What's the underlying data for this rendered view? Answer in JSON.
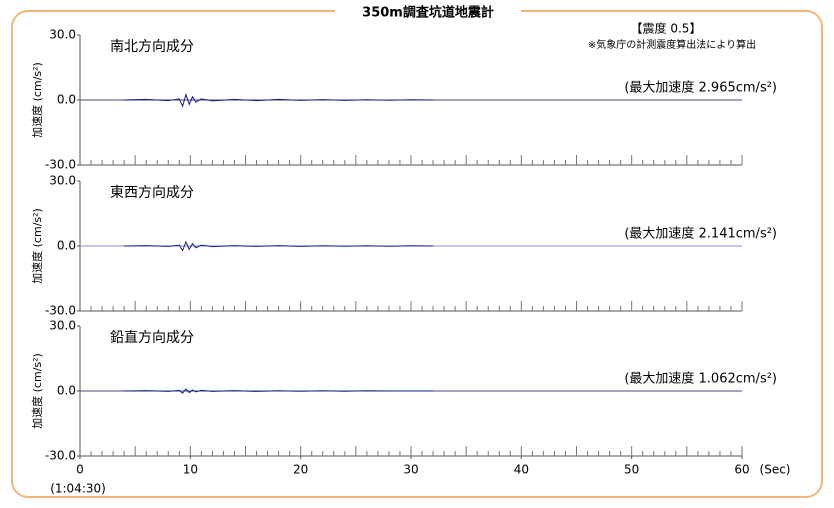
{
  "title": "350m調査坑道地震計",
  "intensity": "【震度 0.5】",
  "note": "※気象庁の計測震度算出法により算出",
  "chart_data": [
    {
      "type": "line",
      "label": "南北方向成分",
      "max_label": "(最大加速度 2.965cm/s²)",
      "ylabel": "加速度 (cm/s²)",
      "x": [
        4,
        6,
        8,
        9,
        9.3,
        9.6,
        9.9,
        10.2,
        10.5,
        11,
        12,
        14,
        16,
        18,
        20,
        22,
        24,
        26,
        28,
        30,
        32
      ],
      "values": [
        0,
        0.3,
        -0.3,
        0.5,
        -2.9,
        2.5,
        -2,
        1.5,
        -1,
        0.5,
        -0.4,
        0.3,
        -0.3,
        0.3,
        -0.2,
        0.2,
        -0.2,
        0.1,
        -0.1,
        0.1,
        0
      ],
      "color": "#1a1a8c",
      "xlim": [
        0,
        60
      ],
      "ylim": [
        -30,
        30
      ],
      "yticks": [
        {
          "value": 30,
          "label": "30.0"
        },
        {
          "value": 0,
          "label": "0.0"
        },
        {
          "value": -30,
          "label": "-30.0"
        }
      ]
    },
    {
      "type": "line",
      "label": "東西方向成分",
      "max_label": "(最大加速度 2.141cm/s²)",
      "ylabel": "加速度 (cm/s²)",
      "x": [
        4,
        6,
        8,
        9,
        9.3,
        9.6,
        9.9,
        10.2,
        10.5,
        11,
        12,
        14,
        16,
        18,
        20,
        22,
        24,
        26,
        28,
        30,
        32
      ],
      "values": [
        0,
        0.2,
        -0.2,
        0.4,
        -2.1,
        1.9,
        -1.5,
        1.1,
        -0.8,
        0.4,
        -0.3,
        0.2,
        -0.2,
        0.2,
        -0.2,
        0.1,
        -0.1,
        0.1,
        -0.1,
        0.1,
        0
      ],
      "color": "#1a1a8c",
      "xlim": [
        0,
        60
      ],
      "ylim": [
        -30,
        30
      ],
      "yticks": [
        {
          "value": 30,
          "label": "30.0"
        },
        {
          "value": 0,
          "label": "0.0"
        },
        {
          "value": -30,
          "label": "-30.0"
        }
      ]
    },
    {
      "type": "line",
      "label": "鉛直方向成分",
      "max_label": "(最大加速度 1.062cm/s²)",
      "ylabel": "加速度 (cm/s²)",
      "x": [
        4,
        6,
        8,
        9,
        9.3,
        9.6,
        9.9,
        10.2,
        10.5,
        11,
        12,
        14,
        16,
        18,
        20,
        22,
        24,
        26,
        28,
        30,
        32
      ],
      "values": [
        0,
        0.2,
        -0.2,
        0.3,
        -1,
        0.9,
        -0.7,
        0.5,
        -0.4,
        0.3,
        -0.2,
        0.2,
        -0.2,
        0.1,
        -0.1,
        0.1,
        -0.1,
        0.1,
        0,
        0,
        0
      ],
      "color": "#1a1a8c",
      "xlim": [
        0,
        60
      ],
      "ylim": [
        -30,
        30
      ],
      "yticks": [
        {
          "value": 30,
          "label": "30.0"
        },
        {
          "value": 0,
          "label": "0.0"
        },
        {
          "value": -30,
          "label": "-30.0"
        }
      ],
      "xticks": [
        0,
        10,
        20,
        30,
        40,
        50,
        60
      ],
      "xlabel": "(Sec)",
      "start_time": "(1:04:30)"
    }
  ]
}
